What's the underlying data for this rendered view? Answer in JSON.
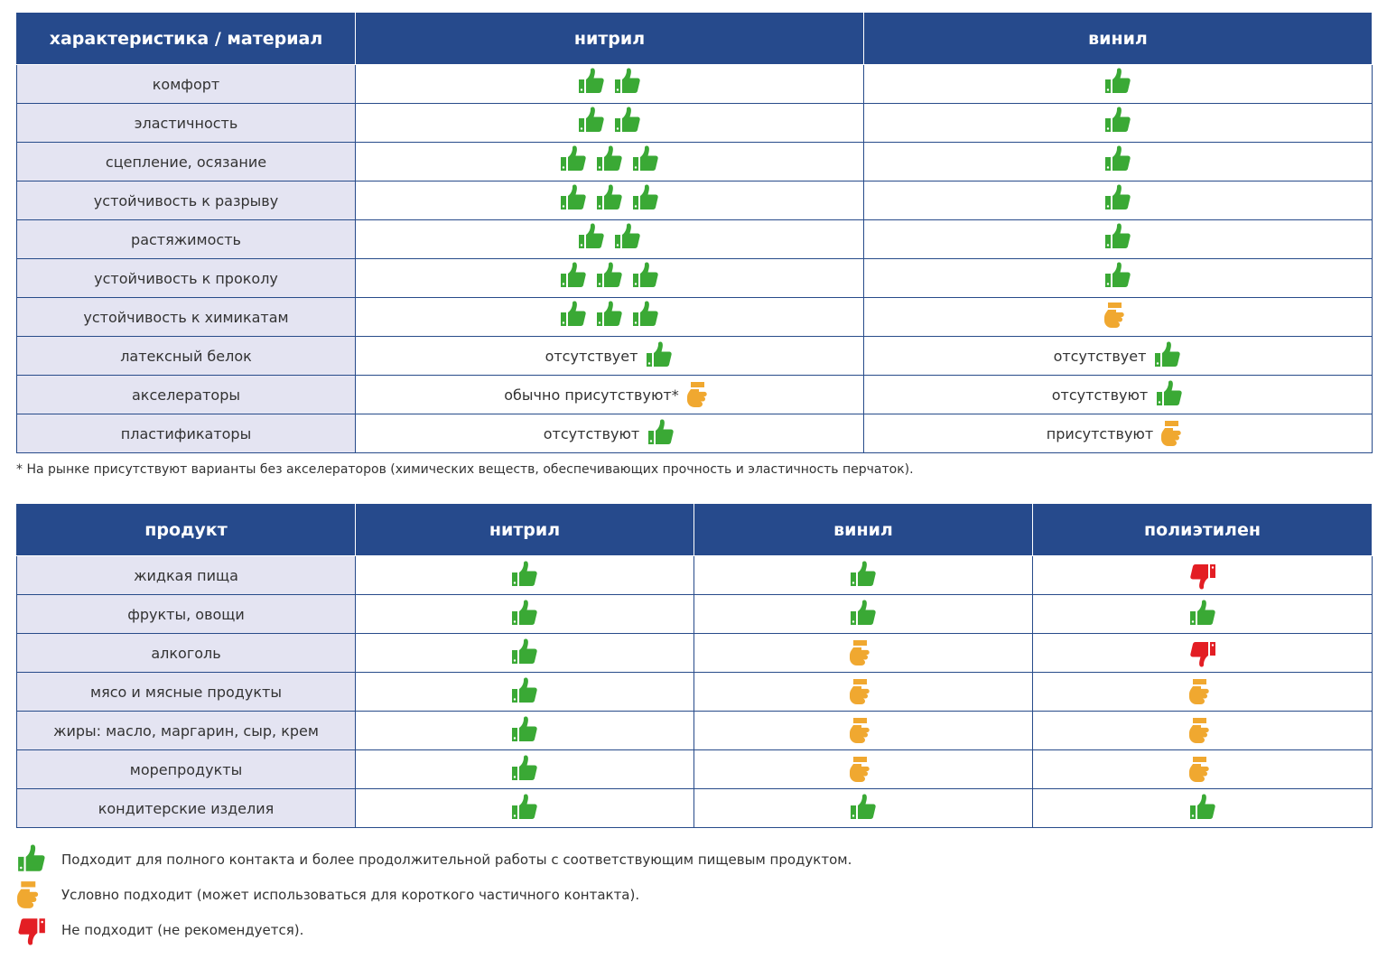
{
  "colors": {
    "header_bg": "#264a8c",
    "label_bg": "#e4e4f2",
    "good": "#3aa935",
    "conditional": "#f0a830",
    "bad": "#e31e24"
  },
  "table1": {
    "headers": [
      "характеристика / материал",
      "нитрил",
      "винил"
    ],
    "rows": [
      {
        "label": "комфорт",
        "nitrile": {
          "text": "",
          "icons": [
            "up",
            "up"
          ]
        },
        "vinyl": {
          "text": "",
          "icons": [
            "up"
          ]
        }
      },
      {
        "label": "эластичность",
        "nitrile": {
          "text": "",
          "icons": [
            "up",
            "up"
          ]
        },
        "vinyl": {
          "text": "",
          "icons": [
            "up"
          ]
        }
      },
      {
        "label": "сцепление, осязание",
        "nitrile": {
          "text": "",
          "icons": [
            "up",
            "up",
            "up"
          ]
        },
        "vinyl": {
          "text": "",
          "icons": [
            "up"
          ]
        }
      },
      {
        "label": "устойчивость к разрыву",
        "nitrile": {
          "text": "",
          "icons": [
            "up",
            "up",
            "up"
          ]
        },
        "vinyl": {
          "text": "",
          "icons": [
            "up"
          ]
        }
      },
      {
        "label": "растяжимость",
        "nitrile": {
          "text": "",
          "icons": [
            "up",
            "up"
          ]
        },
        "vinyl": {
          "text": "",
          "icons": [
            "up"
          ]
        }
      },
      {
        "label": "устойчивость к проколу",
        "nitrile": {
          "text": "",
          "icons": [
            "up",
            "up",
            "up"
          ]
        },
        "vinyl": {
          "text": "",
          "icons": [
            "up"
          ]
        }
      },
      {
        "label": "устойчивость к химикатам",
        "nitrile": {
          "text": "",
          "icons": [
            "up",
            "up",
            "up"
          ]
        },
        "vinyl": {
          "text": "",
          "icons": [
            "side"
          ]
        }
      },
      {
        "label": "латексный белок",
        "nitrile": {
          "text": "отсутствует",
          "icons": [
            "up"
          ]
        },
        "vinyl": {
          "text": "отсутствует",
          "icons": [
            "up"
          ]
        }
      },
      {
        "label": "акселераторы",
        "nitrile": {
          "text": "обычно присутствуют*",
          "icons": [
            "side"
          ]
        },
        "vinyl": {
          "text": "отсутствуют",
          "icons": [
            "up"
          ]
        }
      },
      {
        "label": "пластификаторы",
        "nitrile": {
          "text": "отсутствуют",
          "icons": [
            "up"
          ]
        },
        "vinyl": {
          "text": "присутствуют",
          "icons": [
            "side"
          ]
        }
      }
    ]
  },
  "footnote": "*  На рынке присутствуют варианты без акселераторов (химических веществ, обеспечивающих прочность и эластичность перчаток).",
  "table2": {
    "headers": [
      "продукт",
      "нитрил",
      "винил",
      "полиэтилен"
    ],
    "rows": [
      {
        "label": "жидкая пища",
        "ratings": [
          "up",
          "up",
          "down"
        ]
      },
      {
        "label": "фрукты, овощи",
        "ratings": [
          "up",
          "up",
          "up"
        ]
      },
      {
        "label": "алкоголь",
        "ratings": [
          "up",
          "side",
          "down"
        ]
      },
      {
        "label": "мясо и мясные продукты",
        "ratings": [
          "up",
          "side",
          "side"
        ]
      },
      {
        "label": "жиры: масло, маргарин, сыр, крем",
        "ratings": [
          "up",
          "side",
          "side"
        ]
      },
      {
        "label": "морепродукты",
        "ratings": [
          "up",
          "side",
          "side"
        ]
      },
      {
        "label": "кондитерские изделия",
        "ratings": [
          "up",
          "up",
          "up"
        ]
      }
    ]
  },
  "legend": [
    {
      "icon": "up",
      "text": "Подходит для полного контакта и более продолжительной работы с соответствующим пищевым продуктом."
    },
    {
      "icon": "side",
      "text": "Условно подходит (может использоваться для короткого частичного контакта)."
    },
    {
      "icon": "down",
      "text": "Не подходит (не рекомендуется)."
    }
  ]
}
